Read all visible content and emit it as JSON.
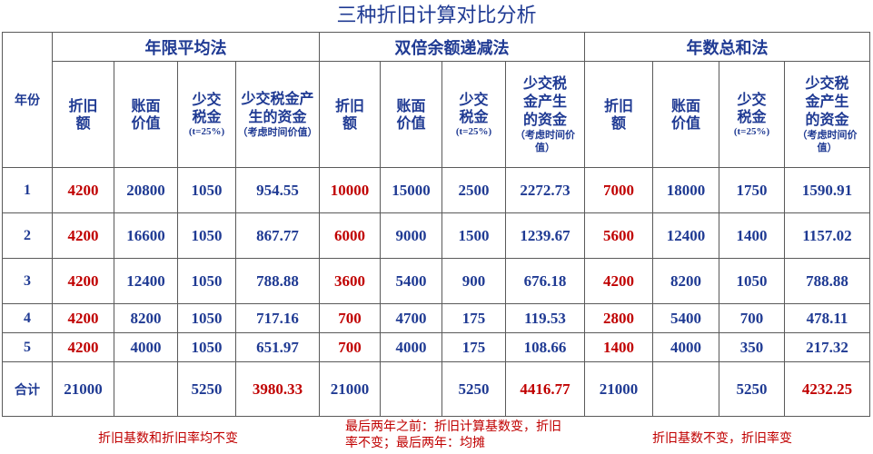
{
  "title": "三种折旧计算对比分析",
  "header": {
    "year": "年份",
    "groups": [
      "年限平均法",
      "双倍余额递减法",
      "年数总和法"
    ],
    "col_depr": "折旧额",
    "col_book": "账面价值",
    "col_tax": "少交税金",
    "tax_note": "(t=25%)",
    "col_fund": "少交税金产生的资金",
    "fund_note": "（考虑时间价值）"
  },
  "rows": [
    {
      "year": "1",
      "sl": [
        "4200",
        "20800",
        "1050",
        "954.55"
      ],
      "ddb": [
        "10000",
        "15000",
        "2500",
        "2272.73"
      ],
      "syd": [
        "7000",
        "18000",
        "1750",
        "1590.91"
      ]
    },
    {
      "year": "2",
      "sl": [
        "4200",
        "16600",
        "1050",
        "867.77"
      ],
      "ddb": [
        "6000",
        "9000",
        "1500",
        "1239.67"
      ],
      "syd": [
        "5600",
        "12400",
        "1400",
        "1157.02"
      ]
    },
    {
      "year": "3",
      "sl": [
        "4200",
        "12400",
        "1050",
        "788.88"
      ],
      "ddb": [
        "3600",
        "5400",
        "900",
        "676.18"
      ],
      "syd": [
        "4200",
        "8200",
        "1050",
        "788.88"
      ]
    },
    {
      "year": "4",
      "sl": [
        "4200",
        "8200",
        "1050",
        "717.16"
      ],
      "ddb": [
        "700",
        "4700",
        "175",
        "119.53"
      ],
      "syd": [
        "2800",
        "5400",
        "700",
        "478.11"
      ]
    },
    {
      "year": "5",
      "sl": [
        "4200",
        "4000",
        "1050",
        "651.97"
      ],
      "ddb": [
        "700",
        "4000",
        "175",
        "108.66"
      ],
      "syd": [
        "1400",
        "4000",
        "350",
        "217.32"
      ]
    }
  ],
  "total": {
    "label": "合计",
    "sl": [
      "21000",
      "",
      "5250",
      "3980.33"
    ],
    "ddb": [
      "21000",
      "",
      "5250",
      "4416.77"
    ],
    "syd": [
      "21000",
      "",
      "5250",
      "4232.25"
    ]
  },
  "notes": {
    "sl": "折旧基数和折旧率均不变",
    "ddb_line1": "最后两年之前：折旧计算基数变，折旧",
    "ddb_line2": "率不变；最后两年：均摊",
    "syd": "折旧基数不变，折旧率变"
  },
  "colors": {
    "blue": "#1f3a93",
    "red": "#c00000",
    "border": "#5a5a5a"
  }
}
